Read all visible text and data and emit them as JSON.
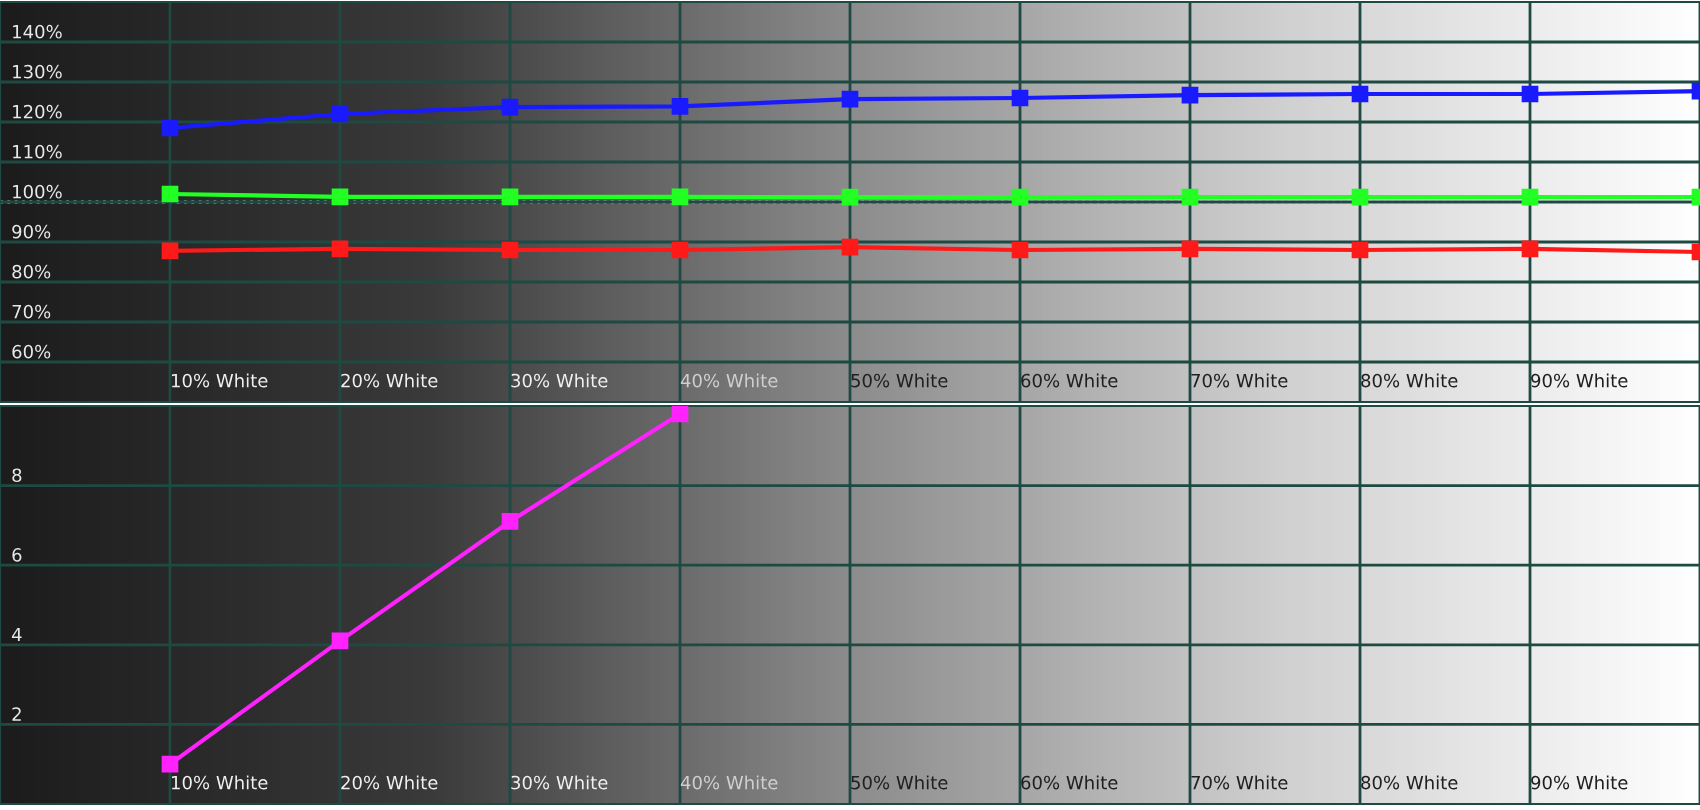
{
  "chart_data": [
    {
      "type": "line",
      "categories": [
        "10% White",
        "20% White",
        "30% White",
        "40% White",
        "50% White",
        "60% White",
        "70% White",
        "80% White",
        "90% White",
        null
      ],
      "series": [
        {
          "color": "#1a1aff",
          "values": [
            118.5,
            122,
            123.7,
            123.9,
            125.7,
            126,
            126.7,
            127,
            127,
            127.7
          ]
        },
        {
          "color": "#22ff22",
          "values": [
            102,
            101.3,
            101.3,
            101.3,
            101.2,
            101.2,
            101.2,
            101.2,
            101.2,
            101.2
          ]
        },
        {
          "color": "#ff1a1a",
          "values": [
            87.8,
            88.3,
            88,
            88,
            88.7,
            88,
            88.3,
            88,
            88.3,
            87.5
          ]
        }
      ],
      "ylim": [
        50,
        150
      ],
      "yticks": [
        {
          "value": 60,
          "label": "60%"
        },
        {
          "value": 70,
          "label": "70%"
        },
        {
          "value": 80,
          "label": "80%"
        },
        {
          "value": 90,
          "label": "90%"
        },
        {
          "value": 100,
          "label": "100%"
        },
        {
          "value": 110,
          "label": "110%"
        },
        {
          "value": 120,
          "label": "120%"
        },
        {
          "value": 130,
          "label": "130%"
        },
        {
          "value": 140,
          "label": "140%"
        }
      ],
      "ref_lines": [
        {
          "axis": "y",
          "value": 100,
          "color": "#ffffff",
          "line_style": "dotted"
        }
      ],
      "grid": true,
      "marker": "square",
      "line_style": "solid"
    },
    {
      "type": "line",
      "categories": [
        "10% White",
        "20% White",
        "30% White",
        "40% White",
        "50% White",
        "60% White",
        "70% White",
        "80% White",
        "90% White",
        null
      ],
      "series": [
        {
          "color": "#ff22ff",
          "values": [
            1.0,
            4.1,
            7.1,
            9.8,
            null,
            null,
            null,
            null,
            null,
            null
          ]
        }
      ],
      "ylim": [
        0,
        10
      ],
      "yticks": [
        2,
        4,
        6,
        8
      ],
      "grid": true,
      "marker": "square",
      "line_style": "solid"
    }
  ]
}
